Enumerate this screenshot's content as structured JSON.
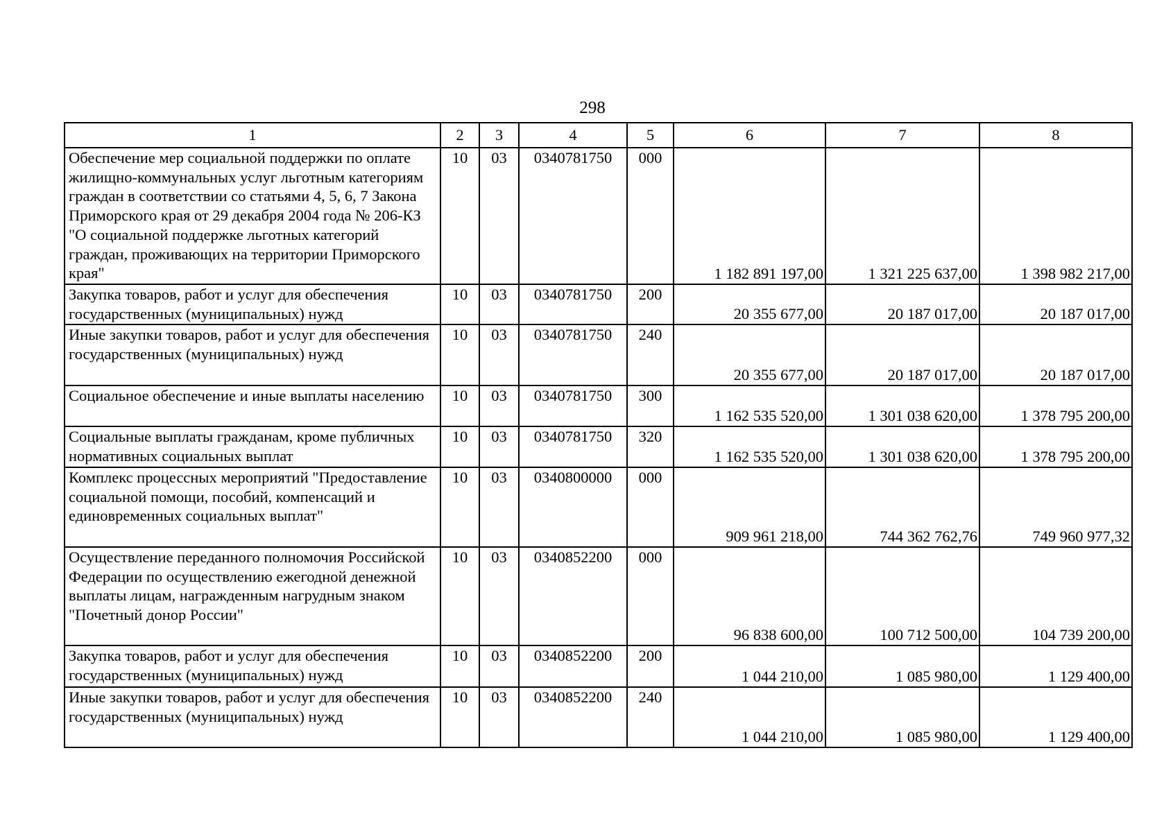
{
  "page_number": "298",
  "headers": [
    "1",
    "2",
    "3",
    "4",
    "5",
    "6",
    "7",
    "8"
  ],
  "rows": [
    {
      "name": "Обеспечение мер социальной поддержки по оплате жилищно-коммунальных услуг льготным категориям граждан в соответствии со статьями 4, 5, 6, 7 Закона Приморского края от 29 декабря 2004 года № 206-КЗ \"О социальной поддержке льготных категорий граждан, проживающих на территории Приморского края\"",
      "c2": "10",
      "c3": "03",
      "c4": "0340781750",
      "c5": "000",
      "c6": "1 182 891 197,00",
      "c7": "1 321 225 637,00",
      "c8": "1 398 982 217,00"
    },
    {
      "name": "Закупка товаров, работ и услуг для обеспечения государственных (муниципальных) нужд",
      "c2": "10",
      "c3": "03",
      "c4": "0340781750",
      "c5": "200",
      "c6": "20 355 677,00",
      "c7": "20 187 017,00",
      "c8": "20 187 017,00"
    },
    {
      "name": "Иные закупки товаров, работ и услуг для обеспечения государственных (муниципальных) нужд",
      "c2": "10",
      "c3": "03",
      "c4": "0340781750",
      "c5": "240",
      "c6": "20 355 677,00",
      "c7": "20 187 017,00",
      "c8": "20 187 017,00"
    },
    {
      "name": "Социальное обеспечение и иные выплаты населению",
      "c2": "10",
      "c3": "03",
      "c4": "0340781750",
      "c5": "300",
      "c6": "1 162 535 520,00",
      "c7": "1 301 038 620,00",
      "c8": "1 378 795 200,00"
    },
    {
      "name": "Социальные выплаты гражданам, кроме публичных нормативных социальных выплат",
      "c2": "10",
      "c3": "03",
      "c4": "0340781750",
      "c5": "320",
      "c6": "1 162 535 520,00",
      "c7": "1 301 038 620,00",
      "c8": "1 378 795 200,00"
    },
    {
      "name": "Комплекс процессных мероприятий \"Предоставление социальной помощи, пособий, компенсаций и единовременных социальных выплат\"",
      "c2": "10",
      "c3": "03",
      "c4": "0340800000",
      "c5": "000",
      "c6": "909 961 218,00",
      "c7": "744 362 762,76",
      "c8": "749 960 977,32"
    },
    {
      "name": "Осуществление переданного полномочия Российской Федерации по осуществлению ежегодной денежной выплаты лицам, награжденным нагрудным знаком \"Почетный донор России\"",
      "c2": "10",
      "c3": "03",
      "c4": "0340852200",
      "c5": "000",
      "c6": "96 838 600,00",
      "c7": "100 712 500,00",
      "c8": "104 739 200,00"
    },
    {
      "name": "Закупка товаров, работ и услуг для обеспечения государственных (муниципальных) нужд",
      "c2": "10",
      "c3": "03",
      "c4": "0340852200",
      "c5": "200",
      "c6": "1 044 210,00",
      "c7": "1 085 980,00",
      "c8": "1 129 400,00"
    },
    {
      "name": "Иные закупки товаров, работ и услуг для обеспечения государственных (муниципальных) нужд",
      "c2": "10",
      "c3": "03",
      "c4": "0340852200",
      "c5": "240",
      "c6": "1 044 210,00",
      "c7": "1 085 980,00",
      "c8": "1 129 400,00"
    }
  ]
}
